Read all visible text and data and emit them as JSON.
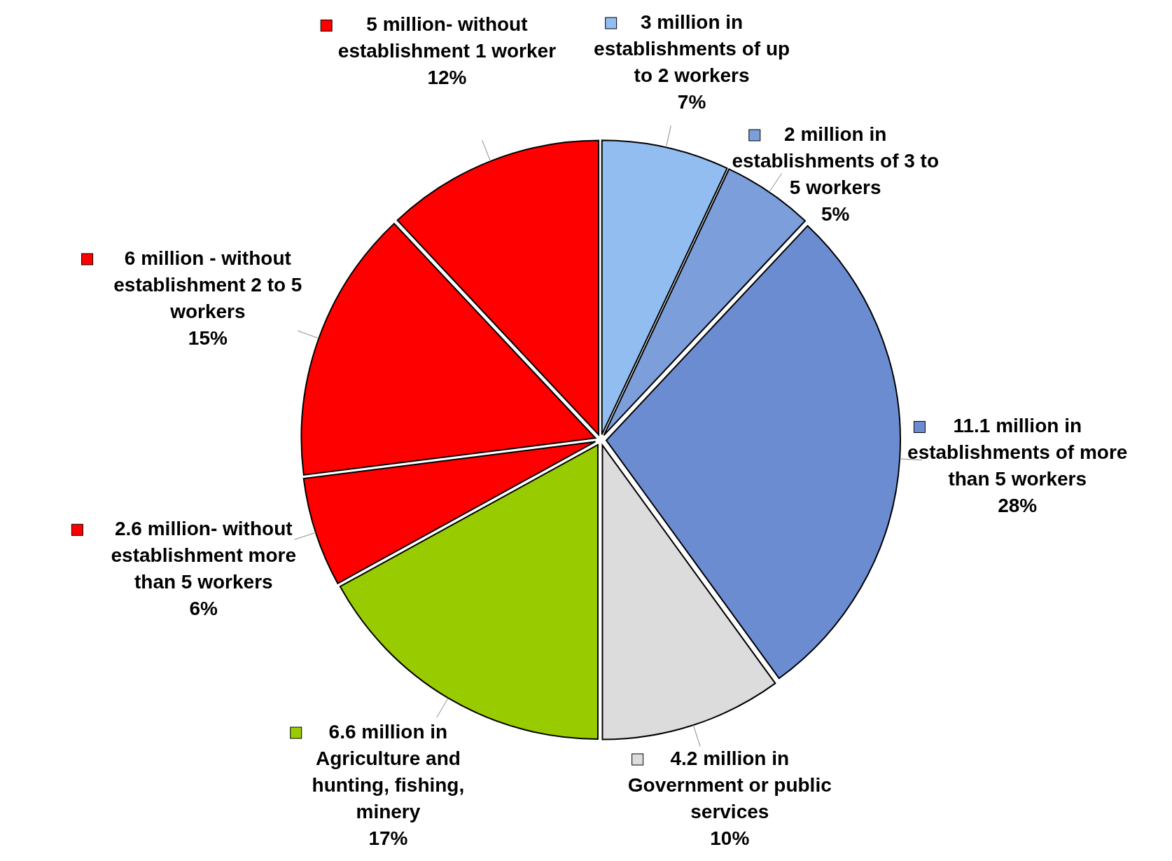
{
  "chart_data": {
    "type": "pie",
    "categories": [
      "3 million in establishments of up to 2 workers",
      "2 million in establishments of 3 to 5 workers",
      "11.1 million in establishments of more than 5 workers",
      "4.2 million in Government or public services",
      "6.6 million in Agriculture and hunting, fishing, minery",
      "2.6 million- without establishment more than 5  workers",
      "6 million - without establishment 2 to 5 workers",
      "5 million-  without establishment 1 worker"
    ],
    "values": [
      7,
      5,
      28,
      10,
      17,
      6,
      15,
      12
    ],
    "colors": [
      "#92bdf0",
      "#7c9edb",
      "#6c8cd2",
      "#dcdcdc",
      "#99cc00",
      "#ff0000",
      "#ff0000",
      "#ff0000"
    ],
    "value_labels": [
      "7%",
      "5%",
      "28%",
      "10%",
      "17%",
      "6%",
      "15%",
      "12%"
    ],
    "legend": "right"
  }
}
